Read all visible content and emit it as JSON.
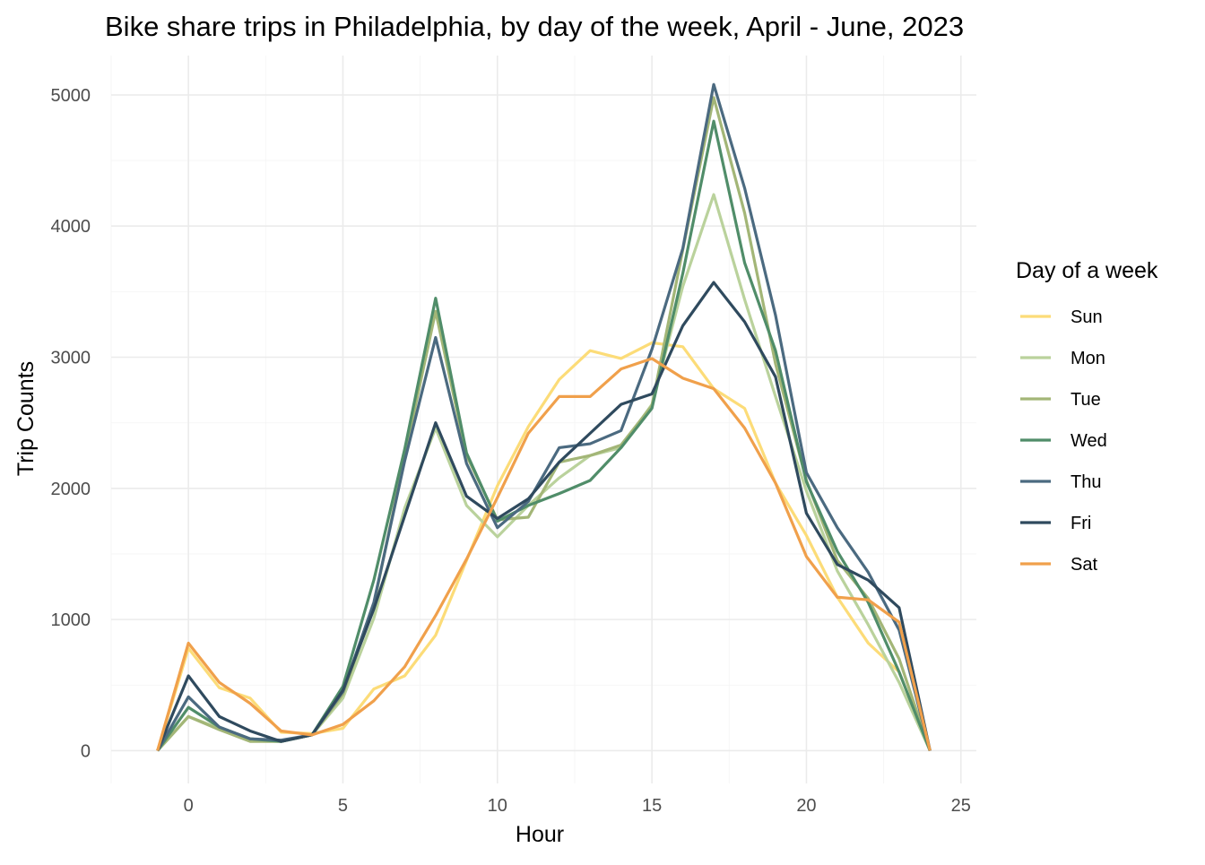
{
  "chart_data": {
    "type": "line",
    "title": "Bike share trips in Philadelphia, by day of the week, April - June, 2023",
    "xlabel": "Hour",
    "ylabel": "Trip Counts",
    "xlim": [
      -2.5,
      25.5
    ],
    "ylim": [
      -250,
      5300
    ],
    "x_ticks": [
      0,
      5,
      10,
      15,
      20,
      25
    ],
    "y_ticks": [
      0,
      1000,
      2000,
      3000,
      4000,
      5000
    ],
    "grid": true,
    "legend": {
      "title": "Day of a week",
      "position": "right"
    },
    "x": [
      -1,
      0,
      1,
      2,
      3,
      4,
      5,
      6,
      7,
      8,
      9,
      10,
      11,
      12,
      13,
      14,
      15,
      16,
      17,
      18,
      19,
      20,
      21,
      22,
      23,
      24
    ],
    "series": [
      {
        "name": "Sun",
        "color": "#FCDC78",
        "values": [
          0,
          780,
          480,
          400,
          140,
          130,
          170,
          470,
          570,
          880,
          1450,
          2020,
          2470,
          2830,
          3050,
          2990,
          3110,
          3080,
          2760,
          2610,
          2040,
          1640,
          1170,
          820,
          600,
          0
        ]
      },
      {
        "name": "Mon",
        "color": "#BAD29C",
        "values": [
          0,
          260,
          170,
          90,
          70,
          120,
          400,
          1010,
          1850,
          2460,
          1870,
          1630,
          1870,
          2080,
          2250,
          2310,
          2640,
          3540,
          4240,
          3440,
          2700,
          1980,
          1370,
          960,
          520,
          0
        ]
      },
      {
        "name": "Tue",
        "color": "#A3B677",
        "values": [
          0,
          260,
          160,
          70,
          70,
          120,
          430,
          1110,
          2250,
          3350,
          2250,
          1760,
          1780,
          2200,
          2250,
          2330,
          2630,
          3820,
          4980,
          4100,
          2950,
          2060,
          1450,
          1160,
          700,
          0
        ]
      },
      {
        "name": "Wed",
        "color": "#508D69",
        "values": [
          0,
          330,
          180,
          90,
          70,
          120,
          490,
          1300,
          2300,
          3450,
          2270,
          1750,
          1870,
          1960,
          2060,
          2310,
          2610,
          3640,
          4800,
          3720,
          3050,
          2050,
          1520,
          1130,
          600,
          0
        ]
      },
      {
        "name": "Thu",
        "color": "#4B6A80",
        "values": [
          0,
          410,
          180,
          90,
          80,
          120,
          450,
          1130,
          2210,
          3150,
          2190,
          1700,
          1900,
          2310,
          2340,
          2440,
          3060,
          3830,
          5080,
          4290,
          3320,
          2120,
          1700,
          1360,
          920,
          0
        ]
      },
      {
        "name": "Fri",
        "color": "#2F4A5E",
        "values": [
          0,
          570,
          260,
          150,
          70,
          120,
          460,
          1080,
          1790,
          2500,
          1940,
          1770,
          1920,
          2200,
          2420,
          2640,
          2720,
          3240,
          3570,
          3270,
          2850,
          1810,
          1420,
          1300,
          1090,
          0
        ]
      },
      {
        "name": "Sat",
        "color": "#F0A04B",
        "values": [
          0,
          820,
          520,
          360,
          150,
          120,
          200,
          380,
          640,
          1030,
          1460,
          1930,
          2420,
          2700,
          2700,
          2910,
          2990,
          2840,
          2760,
          2460,
          2040,
          1480,
          1170,
          1150,
          980,
          0
        ]
      }
    ]
  }
}
